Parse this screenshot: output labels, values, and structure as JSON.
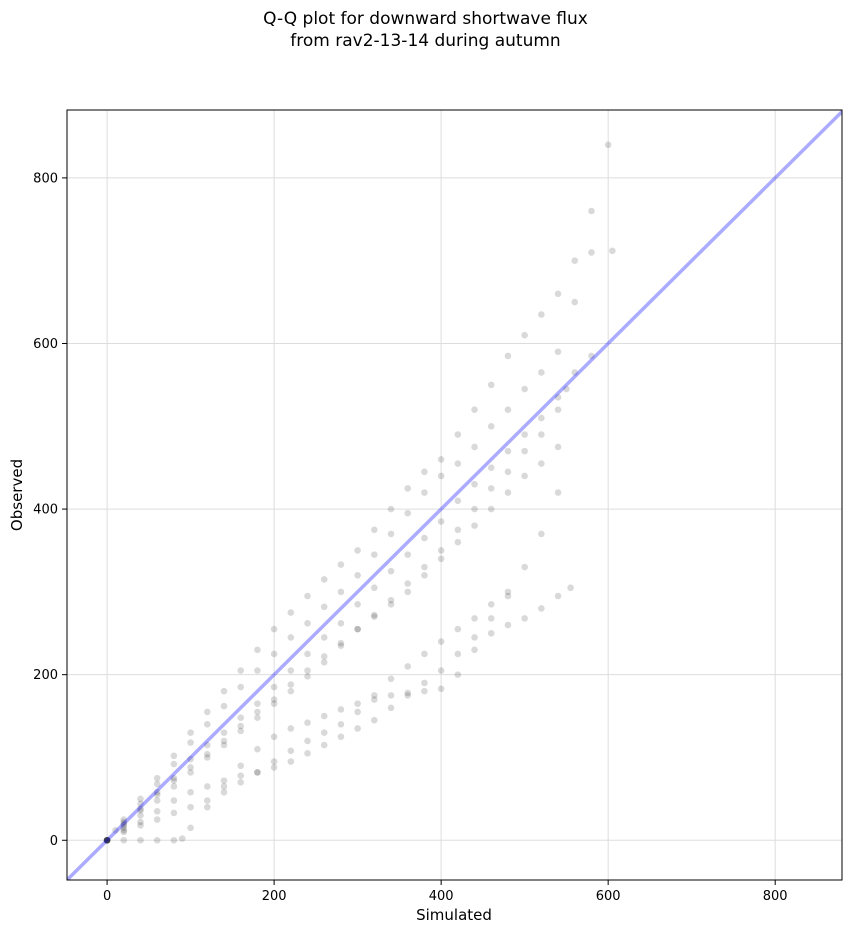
{
  "chart_data": {
    "type": "scatter",
    "title_line1": "Q-Q plot for downward shortwave flux",
    "title_line2": "from rav2-13-14 during autumn",
    "xlabel": "Simulated",
    "ylabel": "Observed",
    "xlim": [
      -48,
      880
    ],
    "ylim": [
      -48,
      882
    ],
    "xticks": [
      0,
      200,
      400,
      600,
      800
    ],
    "yticks": [
      0,
      200,
      400,
      600,
      800
    ],
    "grid": true,
    "point_color": "#000000",
    "point_alpha": 0.15,
    "reference_line": {
      "label": "1:1",
      "color": "#0000ff",
      "alpha": 0.33
    },
    "series": [
      {
        "points": [
          [
            0,
            0
          ],
          [
            10,
            12
          ],
          [
            20,
            25
          ],
          [
            40,
            50
          ],
          [
            60,
            75
          ],
          [
            80,
            102
          ],
          [
            100,
            130
          ],
          [
            120,
            155
          ],
          [
            140,
            180
          ],
          [
            160,
            205
          ],
          [
            180,
            230
          ],
          [
            200,
            255
          ],
          [
            220,
            275
          ],
          [
            240,
            295
          ],
          [
            260,
            315
          ],
          [
            280,
            333
          ],
          [
            300,
            350
          ],
          [
            320,
            375
          ],
          [
            340,
            400
          ],
          [
            360,
            425
          ],
          [
            380,
            445
          ],
          [
            400,
            460
          ],
          [
            420,
            490
          ],
          [
            440,
            520
          ],
          [
            460,
            550
          ],
          [
            480,
            585
          ],
          [
            500,
            610
          ],
          [
            520,
            635
          ],
          [
            540,
            660
          ],
          [
            560,
            700
          ],
          [
            580,
            760
          ],
          [
            600,
            840
          ]
        ]
      },
      {
        "points": [
          [
            0,
            0
          ],
          [
            20,
            22
          ],
          [
            40,
            44
          ],
          [
            60,
            68
          ],
          [
            80,
            92
          ],
          [
            100,
            118
          ],
          [
            120,
            140
          ],
          [
            140,
            162
          ],
          [
            160,
            185
          ],
          [
            180,
            205
          ],
          [
            200,
            225
          ],
          [
            220,
            245
          ],
          [
            240,
            262
          ],
          [
            260,
            282
          ],
          [
            280,
            300
          ],
          [
            300,
            320
          ],
          [
            320,
            345
          ],
          [
            340,
            370
          ],
          [
            360,
            395
          ],
          [
            380,
            420
          ],
          [
            400,
            440
          ],
          [
            420,
            455
          ],
          [
            440,
            475
          ],
          [
            460,
            500
          ],
          [
            480,
            520
          ],
          [
            500,
            545
          ],
          [
            520,
            565
          ],
          [
            540,
            590
          ],
          [
            560,
            650
          ],
          [
            580,
            710
          ],
          [
            605,
            712
          ]
        ]
      },
      {
        "points": [
          [
            0,
            0
          ],
          [
            20,
            20
          ],
          [
            40,
            38
          ],
          [
            60,
            58
          ],
          [
            80,
            75
          ],
          [
            100,
            98
          ],
          [
            120,
            115
          ],
          [
            140,
            130
          ],
          [
            160,
            148
          ],
          [
            180,
            165
          ],
          [
            200,
            185
          ],
          [
            220,
            205
          ],
          [
            240,
            225
          ],
          [
            260,
            245
          ],
          [
            280,
            262
          ],
          [
            300,
            285
          ],
          [
            320,
            305
          ],
          [
            340,
            325
          ],
          [
            360,
            345
          ],
          [
            380,
            365
          ],
          [
            400,
            385
          ],
          [
            420,
            410
          ],
          [
            440,
            430
          ],
          [
            460,
            450
          ],
          [
            480,
            470
          ],
          [
            500,
            490
          ],
          [
            520,
            510
          ],
          [
            540,
            535
          ],
          [
            560,
            565
          ],
          [
            580,
            585
          ]
        ]
      },
      {
        "points": [
          [
            0,
            0
          ],
          [
            20,
            15
          ],
          [
            40,
            30
          ],
          [
            60,
            48
          ],
          [
            80,
            65
          ],
          [
            100,
            82
          ],
          [
            120,
            100
          ],
          [
            140,
            115
          ],
          [
            160,
            132
          ],
          [
            180,
            148
          ],
          [
            200,
            165
          ],
          [
            220,
            180
          ],
          [
            240,
            198
          ],
          [
            260,
            215
          ],
          [
            280,
            235
          ],
          [
            300,
            255
          ],
          [
            320,
            272
          ],
          [
            340,
            290
          ],
          [
            360,
            310
          ],
          [
            380,
            330
          ],
          [
            400,
            350
          ],
          [
            420,
            375
          ],
          [
            440,
            400
          ],
          [
            460,
            425
          ],
          [
            480,
            445
          ],
          [
            500,
            470
          ],
          [
            520,
            490
          ],
          [
            540,
            520
          ],
          [
            550,
            545
          ]
        ]
      },
      {
        "points": [
          [
            0,
            0
          ],
          [
            20,
            18
          ],
          [
            40,
            36
          ],
          [
            60,
            55
          ],
          [
            80,
            72
          ],
          [
            100,
            88
          ],
          [
            120,
            104
          ],
          [
            140,
            120
          ],
          [
            160,
            138
          ],
          [
            180,
            155
          ],
          [
            200,
            170
          ],
          [
            220,
            188
          ],
          [
            240,
            205
          ],
          [
            260,
            222
          ],
          [
            280,
            238
          ],
          [
            300,
            255
          ],
          [
            320,
            270
          ],
          [
            340,
            285
          ],
          [
            360,
            300
          ],
          [
            380,
            320
          ],
          [
            400,
            340
          ],
          [
            420,
            360
          ],
          [
            440,
            380
          ],
          [
            460,
            400
          ],
          [
            480,
            420
          ],
          [
            500,
            440
          ],
          [
            520,
            455
          ],
          [
            540,
            475
          ]
        ]
      },
      {
        "points": [
          [
            0,
            0
          ],
          [
            20,
            12
          ],
          [
            40,
            22
          ],
          [
            60,
            35
          ],
          [
            80,
            48
          ],
          [
            100,
            58
          ],
          [
            120,
            65
          ],
          [
            140,
            72
          ],
          [
            160,
            78
          ],
          [
            180,
            82
          ],
          [
            200,
            88
          ],
          [
            220,
            95
          ],
          [
            240,
            105
          ],
          [
            260,
            115
          ],
          [
            280,
            125
          ],
          [
            300,
            135
          ],
          [
            320,
            145
          ],
          [
            340,
            160
          ],
          [
            360,
            175
          ],
          [
            380,
            190
          ],
          [
            400,
            205
          ],
          [
            420,
            225
          ],
          [
            440,
            245
          ],
          [
            460,
            268
          ],
          [
            480,
            295
          ],
          [
            500,
            330
          ],
          [
            520,
            370
          ],
          [
            540,
            420
          ]
        ]
      },
      {
        "points": [
          [
            0,
            0
          ],
          [
            20,
            0
          ],
          [
            40,
            0
          ],
          [
            60,
            0
          ],
          [
            80,
            0
          ],
          [
            90,
            2
          ],
          [
            100,
            15
          ],
          [
            120,
            40
          ],
          [
            140,
            65
          ],
          [
            160,
            90
          ],
          [
            180,
            110
          ],
          [
            200,
            125
          ],
          [
            220,
            135
          ],
          [
            240,
            142
          ],
          [
            260,
            150
          ],
          [
            280,
            158
          ],
          [
            300,
            165
          ],
          [
            320,
            170
          ],
          [
            340,
            175
          ],
          [
            360,
            178
          ],
          [
            380,
            180
          ],
          [
            400,
            183
          ],
          [
            420,
            200
          ],
          [
            440,
            230
          ],
          [
            460,
            250
          ],
          [
            480,
            260
          ],
          [
            500,
            268
          ],
          [
            520,
            280
          ],
          [
            540,
            295
          ],
          [
            555,
            305
          ]
        ]
      },
      {
        "points": [
          [
            0,
            0
          ],
          [
            20,
            10
          ],
          [
            40,
            18
          ],
          [
            60,
            25
          ],
          [
            80,
            33
          ],
          [
            100,
            40
          ],
          [
            120,
            48
          ],
          [
            140,
            58
          ],
          [
            160,
            70
          ],
          [
            180,
            82
          ],
          [
            200,
            95
          ],
          [
            220,
            108
          ],
          [
            240,
            120
          ],
          [
            260,
            130
          ],
          [
            280,
            140
          ],
          [
            300,
            155
          ],
          [
            320,
            175
          ],
          [
            340,
            195
          ],
          [
            360,
            210
          ],
          [
            380,
            225
          ],
          [
            400,
            240
          ],
          [
            420,
            255
          ],
          [
            440,
            268
          ],
          [
            460,
            285
          ],
          [
            480,
            300
          ]
        ]
      }
    ]
  }
}
